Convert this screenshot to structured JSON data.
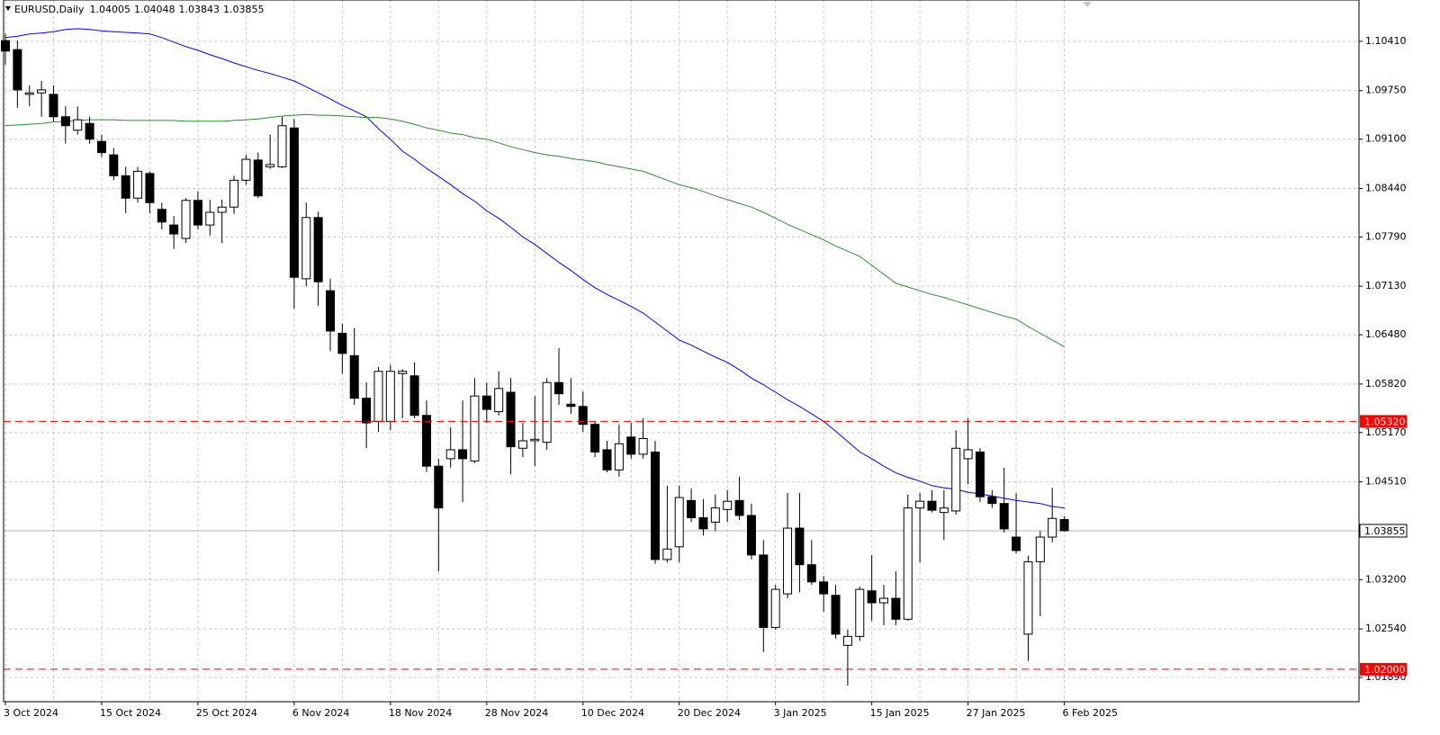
{
  "chart_data": {
    "type": "candlestick",
    "title": "EURUSD,Daily",
    "categories": [
      "3 Oct 2024",
      null,
      null,
      null,
      null,
      null,
      null,
      null,
      "15 Oct 2024",
      null,
      null,
      null,
      null,
      null,
      null,
      null,
      "25 Oct 2024",
      null,
      null,
      null,
      null,
      null,
      null,
      null,
      "6 Nov 2024",
      null,
      null,
      null,
      null,
      null,
      null,
      null,
      "18 Nov 2024",
      null,
      null,
      null,
      null,
      null,
      null,
      null,
      "28 Nov 2024",
      null,
      null,
      null,
      null,
      null,
      null,
      null,
      "10 Dec 2024",
      null,
      null,
      null,
      null,
      null,
      null,
      null,
      "20 Dec 2024",
      null,
      null,
      null,
      null,
      null,
      null,
      null,
      "3 Jan 2025",
      null,
      null,
      null,
      null,
      null,
      null,
      null,
      "15 Jan 2025",
      null,
      null,
      null,
      null,
      null,
      null,
      null,
      "27 Jan 2025",
      null,
      null,
      null,
      null,
      null,
      null,
      null,
      "6 Feb 2025"
    ],
    "open": [
      1.1042,
      1.103,
      1.097,
      1.0972,
      1.097,
      1.094,
      1.0922,
      1.0931,
      1.0907,
      1.0889,
      1.0861,
      1.0831,
      1.0864,
      1.0816,
      1.0795,
      1.0777,
      1.0828,
      1.0795,
      1.0812,
      1.0819,
      1.0855,
      1.0882,
      1.0873,
      1.0873,
      1.0925,
      1.0723,
      1.0805,
      1.0707,
      1.065,
      1.062,
      1.0563,
      1.0532,
      1.0532,
      1.0596,
      1.0593,
      1.054,
      1.0472,
      1.0482,
      1.0494,
      1.0479,
      1.0566,
      1.0545,
      1.0571,
      1.0496,
      1.0506,
      1.0504,
      1.0584,
      1.0555,
      1.0552,
      1.0528,
      1.0494,
      1.0467,
      1.0511,
      1.0488,
      1.0491,
      1.0347,
      1.0364,
      1.0426,
      1.0403,
      1.0397,
      1.0414,
      1.0426,
      1.0406,
      1.0353,
      1.0256,
      1.0301,
      1.0389,
      1.034,
      1.0317,
      1.0299,
      1.0232,
      1.0244,
      1.0305,
      1.0289,
      1.0295,
      1.0267,
      1.0416,
      1.0425,
      1.041,
      1.0412,
      1.0482,
      1.0491,
      1.0431,
      1.0422,
      1.0377,
      1.0247,
      1.0344,
      1.0377,
      1.04005
    ],
    "high": [
      1.1051,
      1.1042,
      1.0982,
      1.0988,
      1.0982,
      1.0954,
      1.0954,
      1.094,
      1.0916,
      1.0898,
      1.0873,
      1.0873,
      1.0867,
      1.0825,
      1.0807,
      1.0831,
      1.084,
      1.0829,
      1.0829,
      1.0861,
      1.0889,
      1.0892,
      1.0916,
      1.094,
      1.0937,
      1.0825,
      1.0813,
      1.0723,
      1.0663,
      1.0657,
      1.0584,
      1.0605,
      1.0608,
      1.0602,
      1.0611,
      1.056,
      1.0482,
      1.0524,
      1.056,
      1.059,
      1.0584,
      1.0599,
      1.059,
      1.053,
      1.0566,
      1.059,
      1.063,
      1.059,
      1.0572,
      1.0532,
      1.0506,
      1.0528,
      1.053,
      1.0536,
      1.0506,
      1.0446,
      1.0446,
      1.0442,
      1.0428,
      1.0434,
      1.044,
      1.0458,
      1.0422,
      1.0373,
      1.0313,
      1.0436,
      1.0436,
      1.0373,
      1.0325,
      1.0313,
      1.0253,
      1.0311,
      1.0353,
      1.0313,
      1.0331,
      1.0434,
      1.0436,
      1.044,
      1.044,
      1.052,
      1.0536,
      1.0496,
      1.044,
      1.047,
      1.0436,
      1.0352,
      1.0385,
      1.0443,
      1.04048
    ],
    "low": [
      1.101,
      1.0952,
      1.0954,
      1.094,
      1.0934,
      1.0904,
      1.0916,
      1.0904,
      1.0886,
      1.0855,
      1.0811,
      1.0825,
      1.0811,
      1.0789,
      1.0763,
      1.0771,
      1.0789,
      1.0781,
      1.0771,
      1.081,
      1.0849,
      1.0831,
      1.087,
      1.0871,
      1.0683,
      1.0713,
      1.0687,
      1.0626,
      1.0596,
      1.0554,
      1.0496,
      1.0518,
      1.052,
      1.0536,
      1.0536,
      1.0464,
      1.0331,
      1.047,
      1.0424,
      1.0476,
      1.053,
      1.054,
      1.0461,
      1.0484,
      1.0472,
      1.0494,
      1.0554,
      1.0542,
      1.0518,
      1.0484,
      1.0464,
      1.0458,
      1.0482,
      1.0482,
      1.0341,
      1.0343,
      1.0343,
      1.0397,
      1.0379,
      1.0385,
      1.0397,
      1.04,
      1.0347,
      1.0223,
      1.0253,
      1.0295,
      1.0303,
      1.0313,
      1.0277,
      1.0241,
      1.0178,
      1.0238,
      1.0265,
      1.0259,
      1.0259,
      1.0265,
      1.0343,
      1.041,
      1.0373,
      1.0407,
      1.0448,
      1.0424,
      1.0416,
      1.0383,
      1.0355,
      1.0211,
      1.0271,
      1.037,
      1.03843
    ],
    "close": [
      1.1028,
      1.0976,
      1.0972,
      1.0976,
      1.094,
      1.0928,
      1.0936,
      1.091,
      1.0892,
      1.0861,
      1.0831,
      1.0867,
      1.0825,
      1.0799,
      1.0783,
      1.0828,
      1.0795,
      1.0812,
      1.0819,
      1.0855,
      1.0883,
      1.0834,
      1.0876,
      1.0928,
      1.0725,
      1.0805,
      1.0719,
      1.0653,
      1.0623,
      1.0563,
      1.053,
      1.0599,
      1.0599,
      1.0599,
      1.054,
      1.0472,
      1.0416,
      1.0494,
      1.0482,
      1.0566,
      1.0548,
      1.0576,
      1.0498,
      1.0506,
      1.0508,
      1.0584,
      1.0569,
      1.0552,
      1.0528,
      1.0491,
      1.0467,
      1.0502,
      1.0488,
      1.0509,
      1.0347,
      1.0361,
      1.043,
      1.0403,
      1.0388,
      1.0416,
      1.0425,
      1.0406,
      1.0353,
      1.0256,
      1.0307,
      1.0389,
      1.034,
      1.0317,
      1.0301,
      1.0247,
      1.0244,
      1.0307,
      1.0289,
      1.0295,
      1.0267,
      1.0416,
      1.0425,
      1.0413,
      1.0416,
      1.0496,
      1.0494,
      1.0431,
      1.0422,
      1.0388,
      1.0359,
      1.0344,
      1.0377,
      1.0402,
      1.03855
    ],
    "bull_color": "#ffffff",
    "bear_color": "#000000",
    "indicators": [
      {
        "color": "#0000ff",
        "values": [
          1.1046,
          1.1048,
          1.1051,
          1.1052,
          1.1054,
          1.1057,
          1.1058,
          1.1057,
          1.1055,
          1.1054,
          1.1053,
          1.1052,
          1.1051,
          1.1046,
          1.104,
          1.1034,
          1.1029,
          1.1023,
          1.1018,
          1.1012,
          1.1007,
          1.1002,
          1.0998,
          1.0993,
          1.0988,
          1.098,
          1.0972,
          1.0964,
          1.0955,
          1.0948,
          1.094,
          1.0924,
          1.091,
          1.0894,
          1.0883,
          1.0871,
          1.086,
          1.0849,
          1.0837,
          1.0827,
          1.0814,
          1.0804,
          1.0792,
          1.0779,
          1.0769,
          1.0757,
          1.0745,
          1.0734,
          1.0722,
          1.0711,
          1.0702,
          1.0694,
          1.0686,
          1.0677,
          1.0665,
          1.0653,
          1.0641,
          1.0634,
          1.0626,
          1.0618,
          1.0611,
          1.0601,
          1.059,
          1.0581,
          1.0571,
          1.0561,
          1.0552,
          1.0542,
          1.0532,
          1.0519,
          1.0505,
          1.0491,
          1.0482,
          1.0472,
          1.0463,
          1.0457,
          1.0452,
          1.0446,
          1.0443,
          1.0441,
          1.0437,
          1.0435,
          1.0432,
          1.0429,
          1.0426,
          1.0424,
          1.0422,
          1.0418,
          1.0416
        ]
      },
      {
        "color": "#2e8b2e",
        "values": [
          1.0928,
          1.0929,
          1.093,
          1.0931,
          1.0933,
          1.0934,
          1.0935,
          1.0936,
          1.0936,
          1.0936,
          1.0935,
          1.0935,
          1.0935,
          1.0935,
          1.0935,
          1.0934,
          1.0934,
          1.0934,
          1.0934,
          1.0935,
          1.0936,
          1.0937,
          1.0939,
          1.0941,
          1.0942,
          1.0943,
          1.0942,
          1.0942,
          1.0941,
          1.094,
          1.0939,
          1.0939,
          1.0937,
          1.0934,
          1.093,
          1.0925,
          1.0922,
          1.0918,
          1.0916,
          1.0912,
          1.091,
          1.0905,
          1.09,
          1.0896,
          1.0892,
          1.0889,
          1.0887,
          1.0884,
          1.0882,
          1.088,
          1.0876,
          1.0873,
          1.087,
          1.0867,
          1.0861,
          1.0855,
          1.0849,
          1.0845,
          1.084,
          1.0834,
          1.0829,
          1.0824,
          1.0819,
          1.0812,
          1.0804,
          1.0796,
          1.0789,
          1.0782,
          1.0775,
          1.0767,
          1.076,
          1.0753,
          1.0741,
          1.0729,
          1.0717,
          1.0712,
          1.0707,
          1.0702,
          1.0698,
          1.0693,
          1.0688,
          1.0683,
          1.0678,
          1.0673,
          1.0669,
          1.0659,
          1.065,
          1.0641,
          1.0632
        ]
      }
    ],
    "levels": [
      {
        "value": 1.0532,
        "label": "1.05320",
        "color": "#ff0000"
      },
      {
        "value": 1.02,
        "label": "1.02000",
        "color": "#ff0000"
      }
    ],
    "ylim": [
      1.01565,
      1.10964
    ],
    "yticks": [
      {
        "value": 1.1041,
        "label": "1.10410"
      },
      {
        "value": 1.0975,
        "label": "1.09750"
      },
      {
        "value": 1.091,
        "label": "1.09100"
      },
      {
        "value": 1.0844,
        "label": "1.08440"
      },
      {
        "value": 1.0779,
        "label": "1.07790"
      },
      {
        "value": 1.0713,
        "label": "1.07130"
      },
      {
        "value": 1.0648,
        "label": "1.06480"
      },
      {
        "value": 1.0582,
        "label": "1.05820"
      },
      {
        "value": 1.0517,
        "label": "1.05170"
      },
      {
        "value": 1.0451,
        "label": "1.04510"
      },
      {
        "value": 1.032,
        "label": "1.03200"
      },
      {
        "value": 1.0254,
        "label": "1.02540"
      },
      {
        "value": 1.0189,
        "label": "1.01890"
      }
    ],
    "grid": true
  }
}
